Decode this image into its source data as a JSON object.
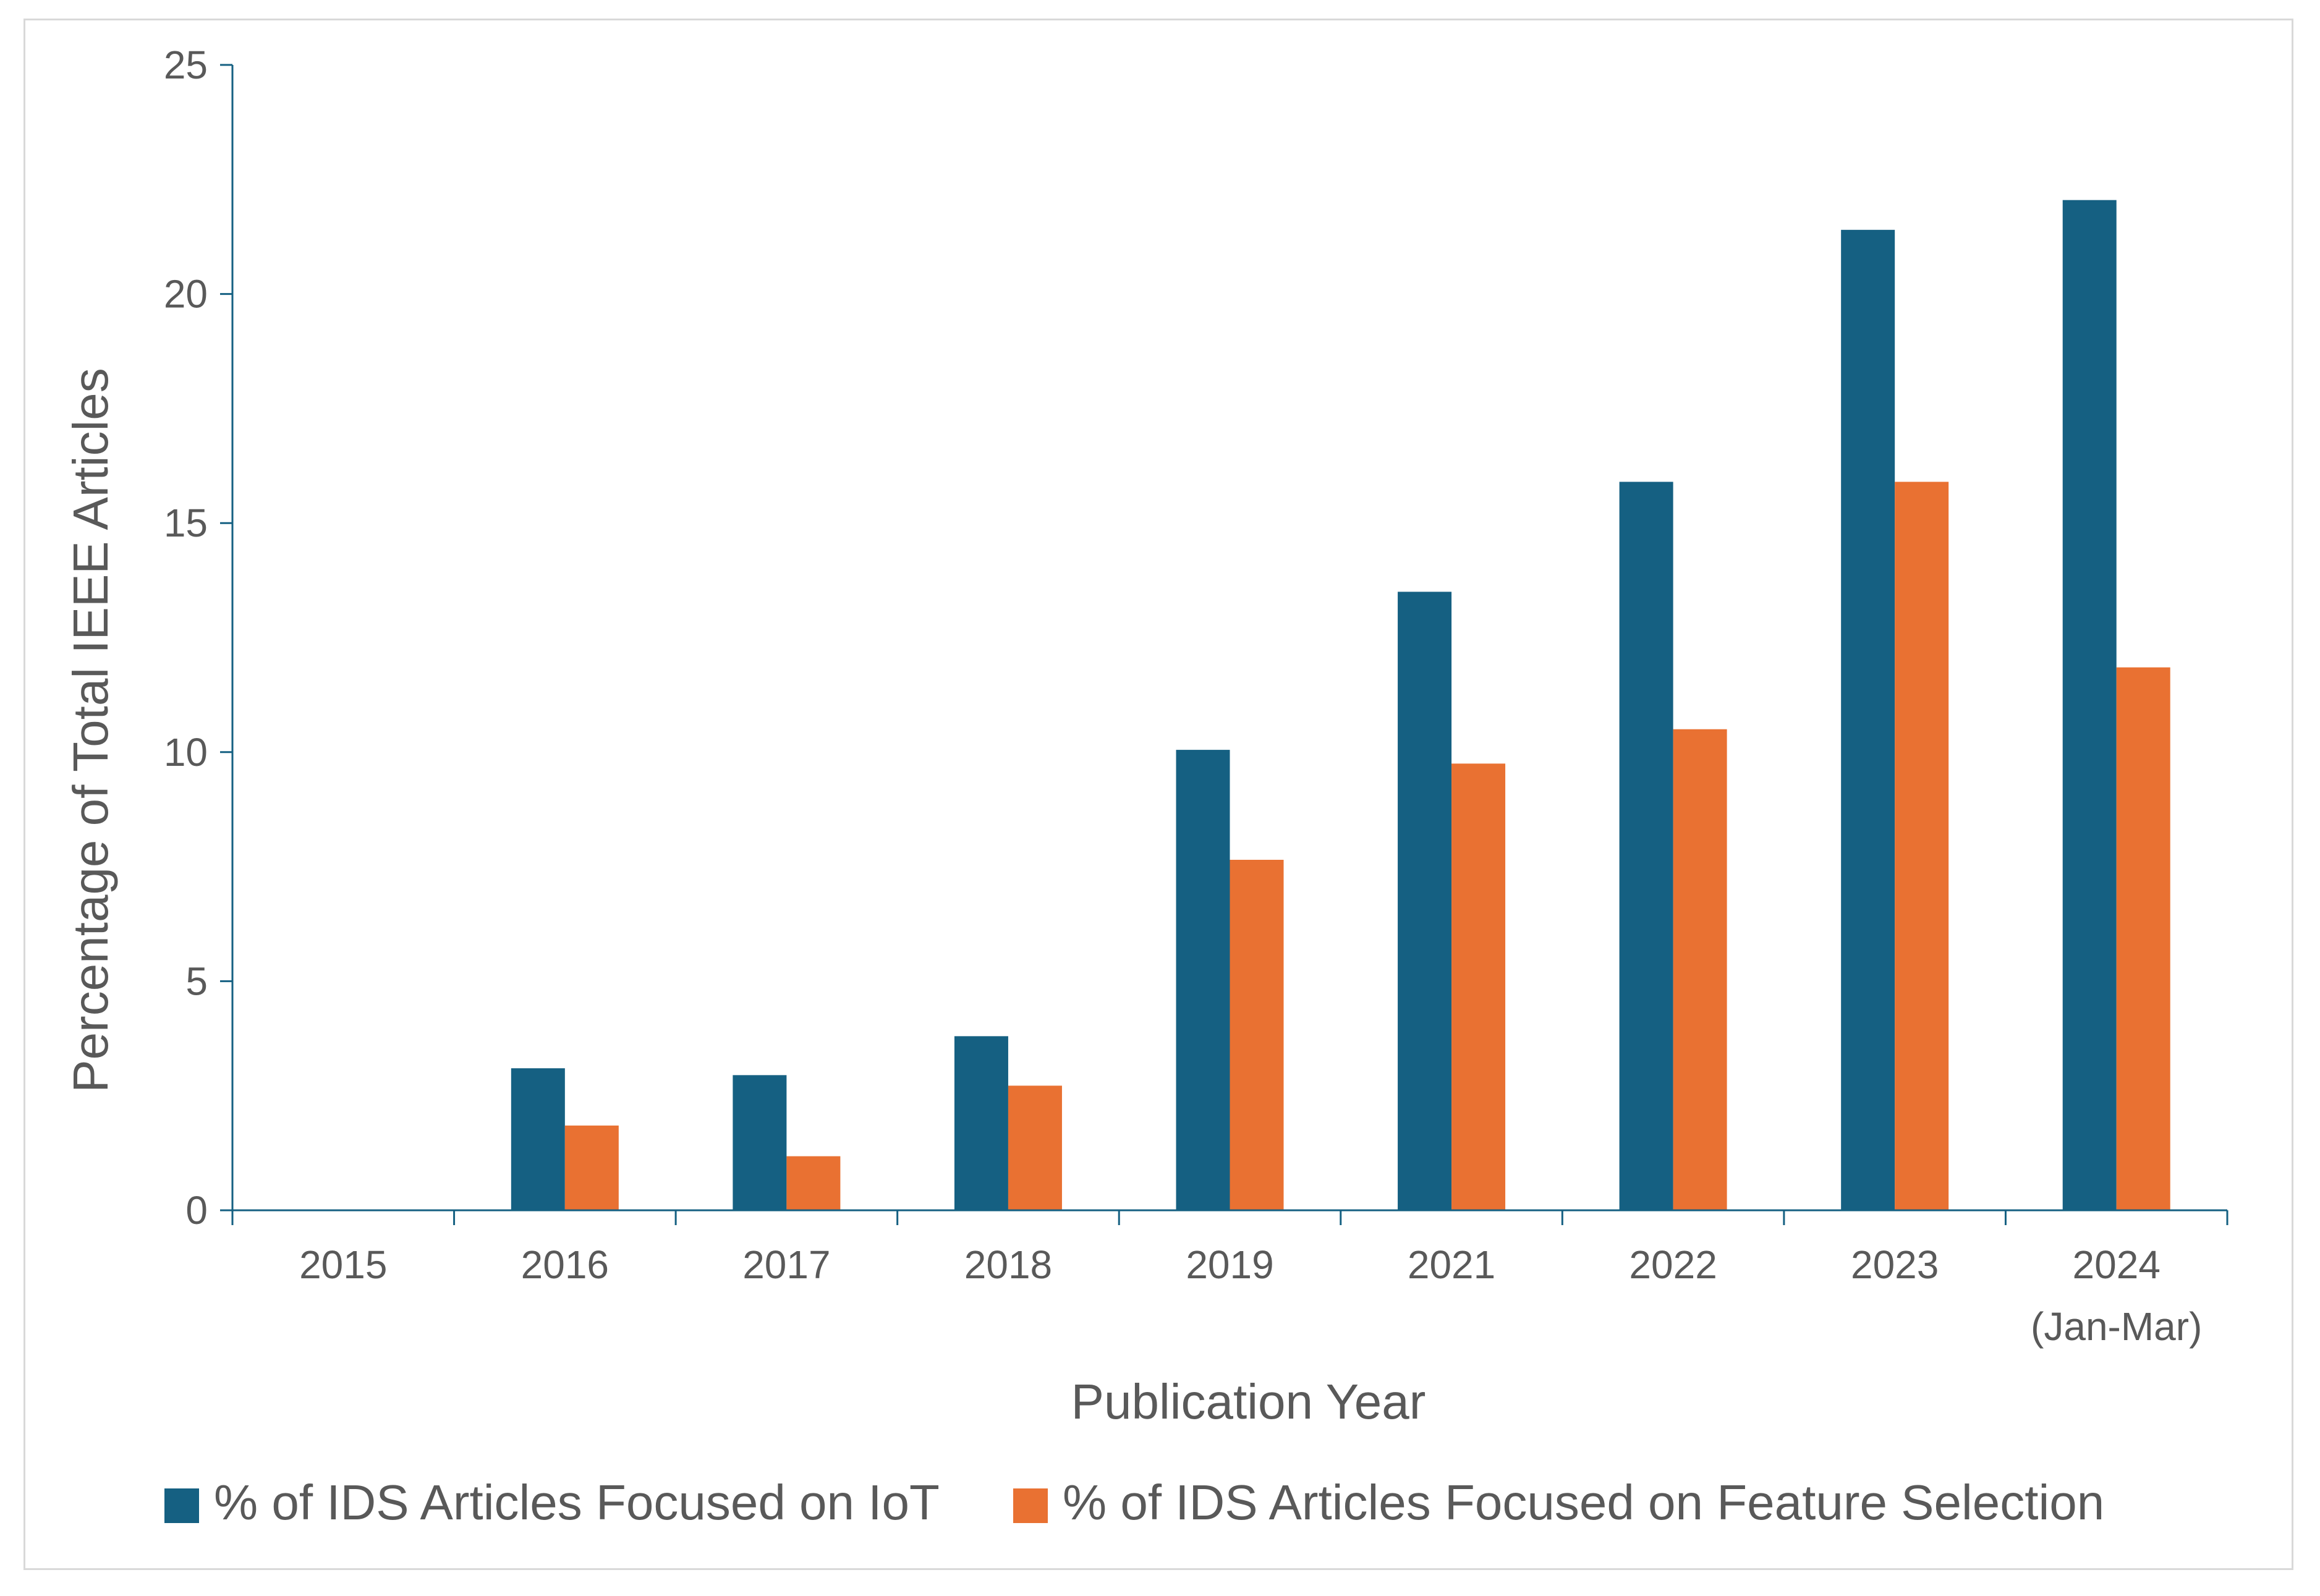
{
  "chart_data": {
    "type": "bar",
    "title": "",
    "xlabel": "Publication Year",
    "ylabel": "Percentage of Total IEEE Articles",
    "categories": [
      [
        "2015"
      ],
      [
        "2016"
      ],
      [
        "2017"
      ],
      [
        "2018"
      ],
      [
        "2019"
      ],
      [
        "2021"
      ],
      [
        "2022"
      ],
      [
        "2023"
      ],
      [
        "2024",
        "(Jan-Mar)"
      ]
    ],
    "ylim": [
      0,
      25
    ],
    "yticks": [
      "0",
      "5",
      "10",
      "15",
      "20",
      "25"
    ],
    "grid": false,
    "legend_position": "bottom",
    "series": [
      {
        "name": "% of IDS Articles Focused on IoT",
        "color": "#156082",
        "values": [
          0,
          3.1,
          2.95,
          3.8,
          10.05,
          13.5,
          15.9,
          21.4,
          22.05
        ]
      },
      {
        "name": "% of IDS Articles Focused on Feature Selection",
        "color": "#E97132",
        "values": [
          0,
          1.85,
          1.18,
          2.72,
          7.65,
          9.75,
          10.5,
          15.9,
          11.85
        ]
      }
    ]
  }
}
